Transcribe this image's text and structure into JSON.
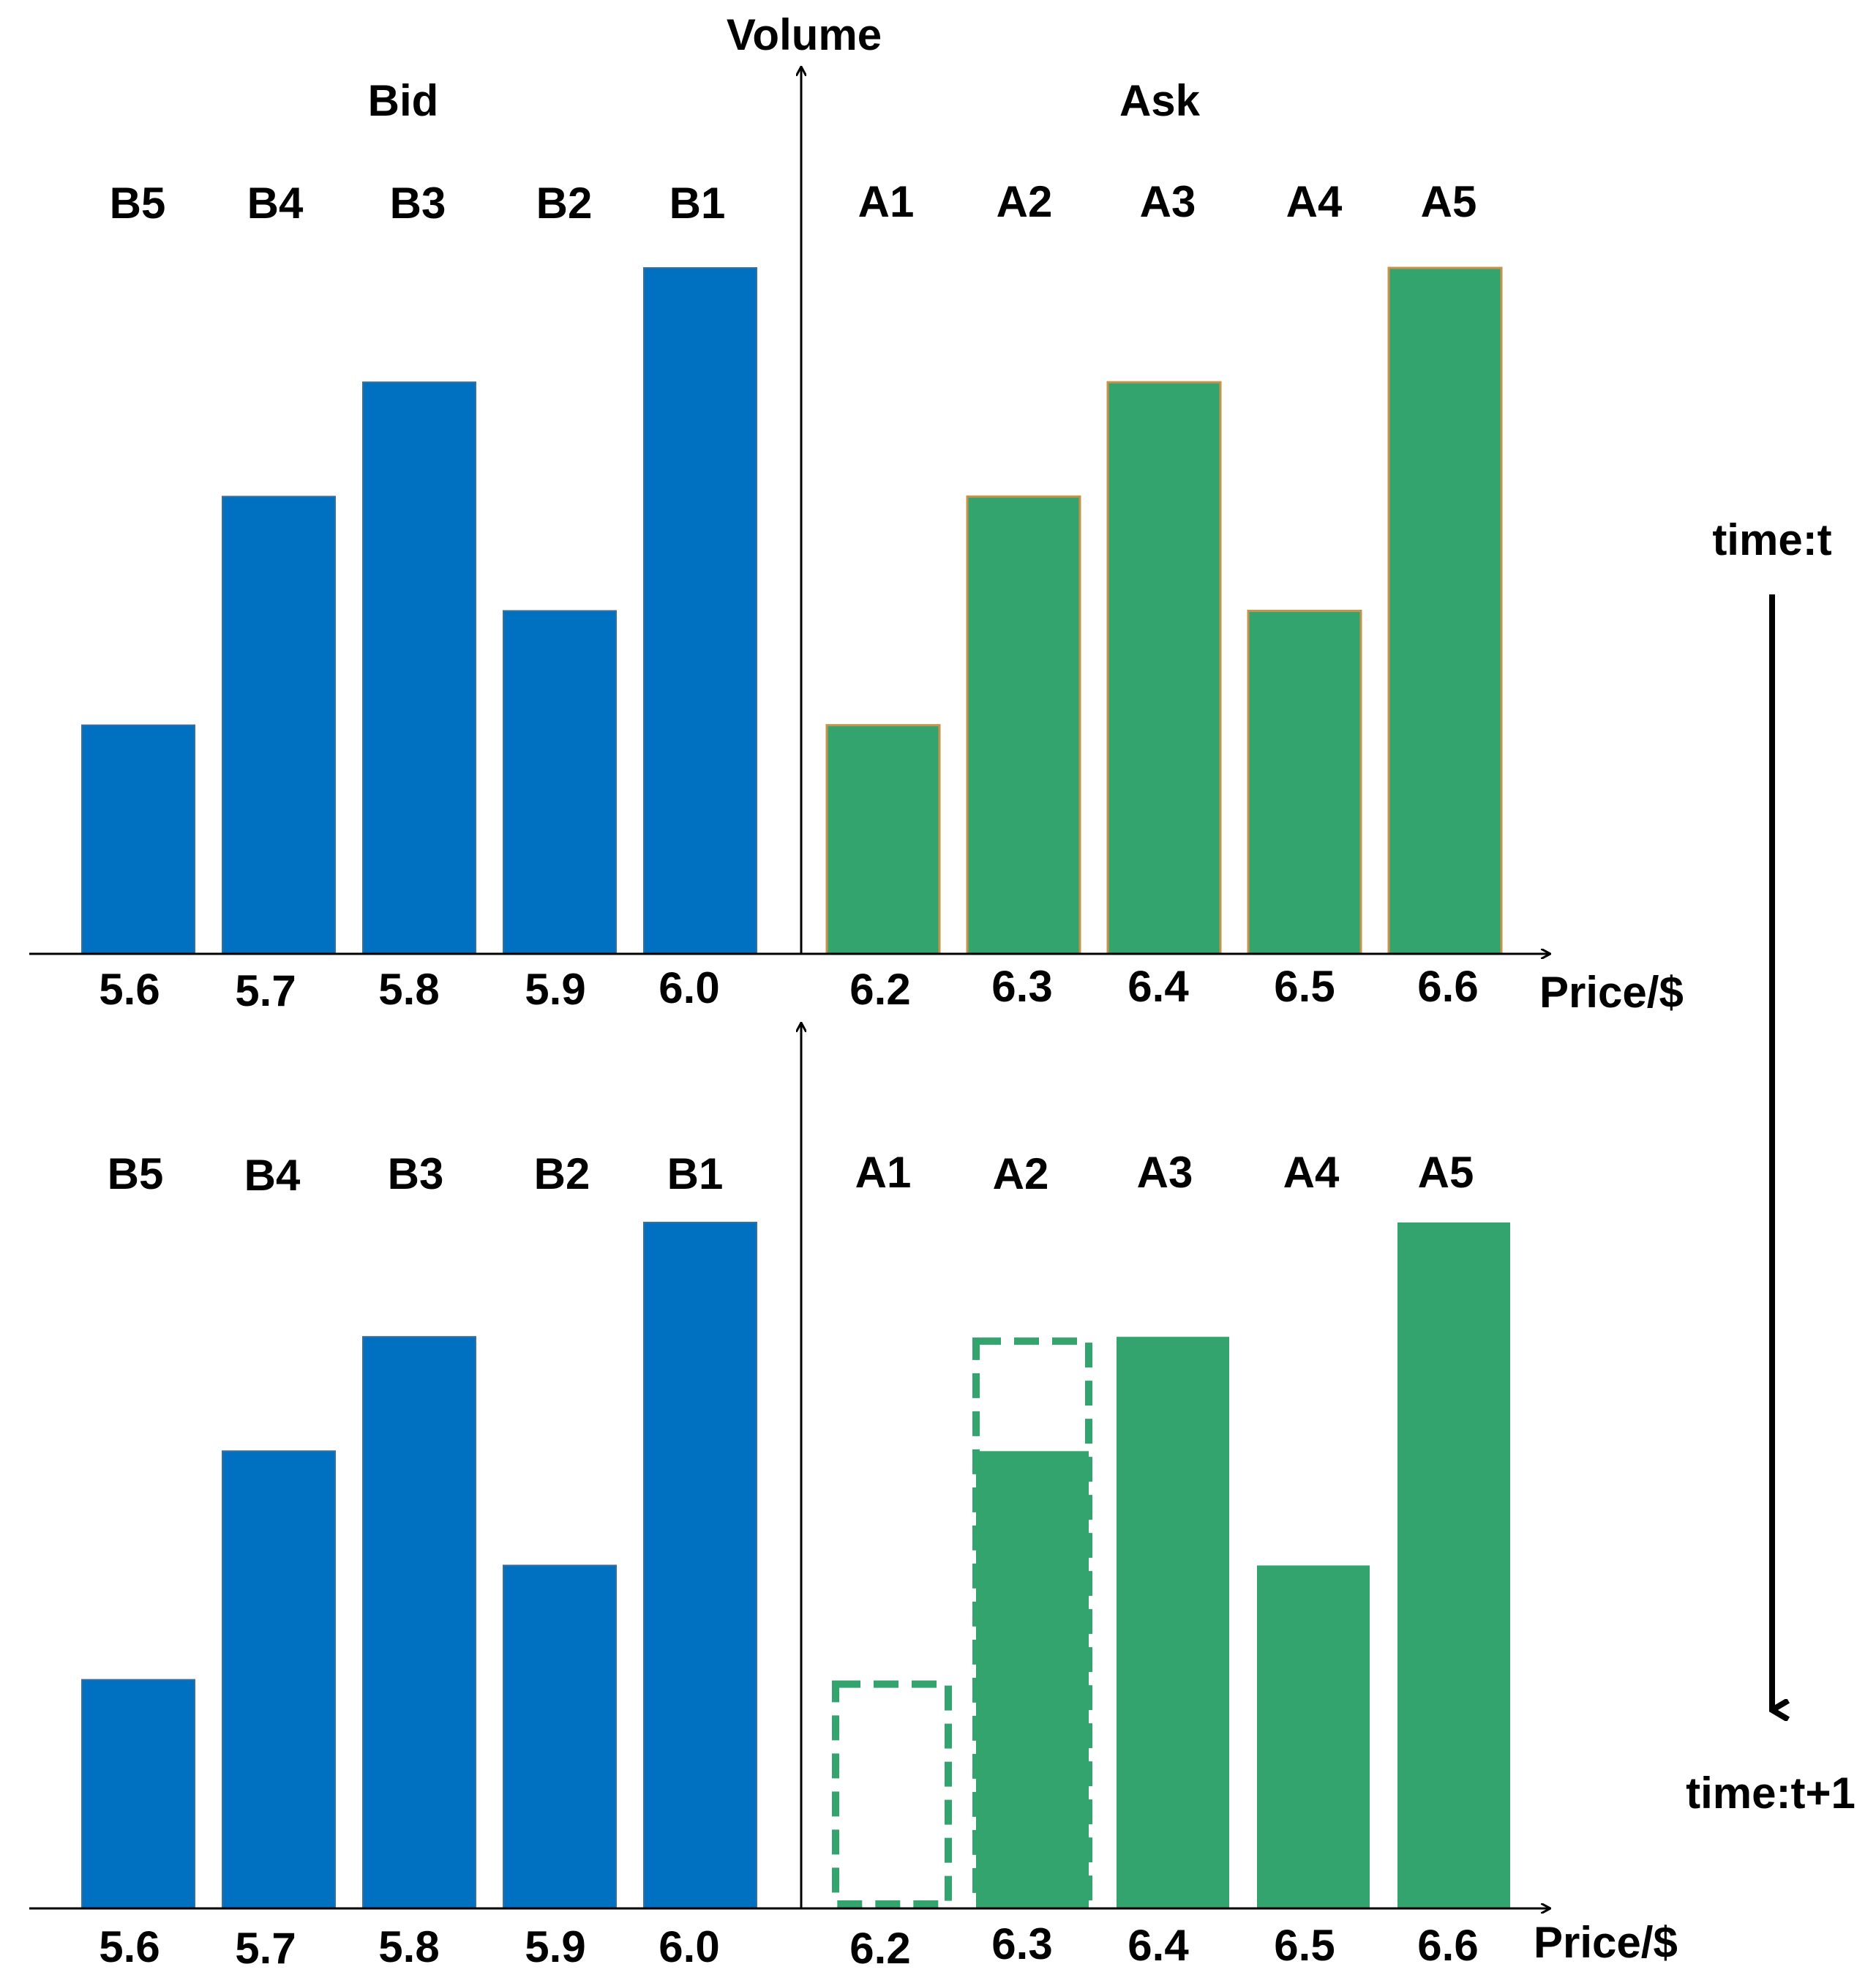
{
  "chart_data": [
    {
      "type": "bar",
      "panel": "top",
      "time_label": "time:t",
      "y_axis_label": "Volume",
      "x_axis_label": "Price/$",
      "bid_title": "Bid",
      "ask_title": "Ask",
      "bid": {
        "levels": [
          "B5",
          "B4",
          "B3",
          "B2",
          "B1"
        ],
        "prices": [
          "5.6",
          "5.7",
          "5.8",
          "5.9",
          "6.0"
        ],
        "volumes": [
          2,
          4,
          5,
          3,
          6
        ],
        "color": "#0070C0"
      },
      "ask": {
        "levels": [
          "A1",
          "A2",
          "A3",
          "A4",
          "A5"
        ],
        "prices": [
          "6.2",
          "6.3",
          "6.4",
          "6.5",
          "6.6"
        ],
        "volumes": [
          2,
          4,
          5,
          3,
          6
        ],
        "color": "#34A46E",
        "edge_color": "#C8924A"
      },
      "ylim": [
        0,
        6
      ]
    },
    {
      "type": "bar",
      "panel": "bottom",
      "time_label": "time:t+1",
      "x_axis_label": "Price/$",
      "bid": {
        "levels": [
          "B5",
          "B4",
          "B3",
          "B2",
          "B1"
        ],
        "prices": [
          "5.6",
          "5.7",
          "5.8",
          "5.9",
          "6.0"
        ],
        "volumes": [
          2,
          4,
          5,
          3,
          6
        ],
        "color": "#0070C0"
      },
      "ask": {
        "levels": [
          "A1",
          "A2",
          "A3",
          "A4",
          "A5"
        ],
        "prices": [
          "6.2",
          "6.3",
          "6.4",
          "6.5",
          "6.6"
        ],
        "volumes": [
          0,
          4,
          5,
          3,
          6
        ],
        "previous_volumes": [
          2,
          5,
          null,
          null,
          null
        ],
        "color": "#34A46E",
        "dashed_color": "#34A46E"
      },
      "ylim": [
        0,
        6
      ]
    }
  ]
}
